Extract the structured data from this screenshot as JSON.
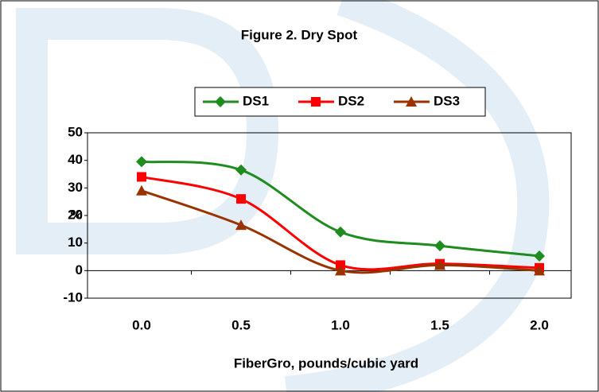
{
  "chart_data": {
    "type": "line",
    "title": "Figure 2. Dry Spot",
    "categories": [
      "0.0",
      "0.5",
      "1.0",
      "1.5",
      "2.0"
    ],
    "series": [
      {
        "name": "DS1",
        "color": "#1e8c1e",
        "marker": "diamond",
        "values": [
          39.5,
          36.5,
          14,
          9,
          5.3
        ]
      },
      {
        "name": "DS2",
        "color": "#ff0000",
        "marker": "square",
        "values": [
          34,
          26,
          2,
          2.5,
          1
        ]
      },
      {
        "name": "DS3",
        "color": "#993300",
        "marker": "triangle",
        "values": [
          29,
          16.5,
          0,
          2,
          0
        ]
      }
    ],
    "ylim": [
      -10,
      50
    ],
    "yticks": [
      -10,
      0,
      10,
      20,
      30,
      40,
      50
    ],
    "ylabel": "%",
    "xlabel": "FiberGro, pounds/cubic yard",
    "smooth": true,
    "legend": "top"
  }
}
